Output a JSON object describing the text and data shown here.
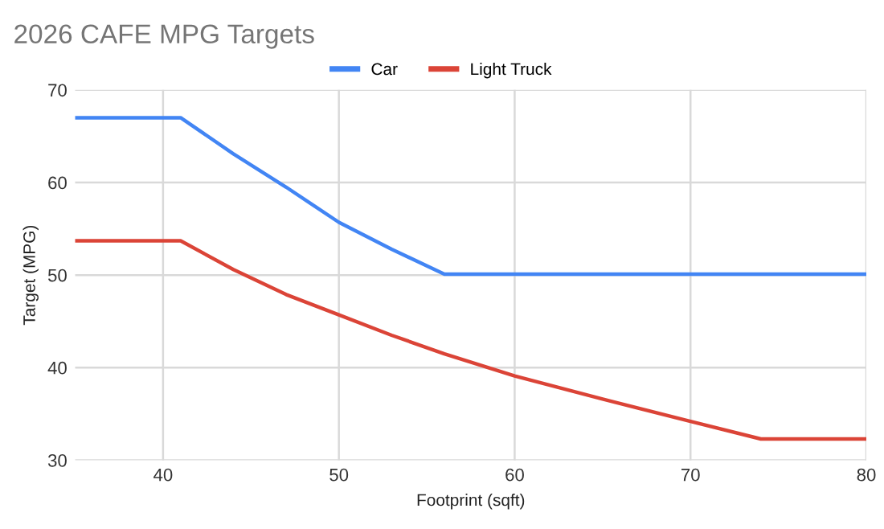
{
  "chart_data": {
    "type": "line",
    "title": "2026 CAFE MPG Targets",
    "xlabel": "Footprint (sqft)",
    "ylabel": "Target (MPG)",
    "xlim": [
      35,
      80
    ],
    "xticks": [
      40,
      50,
      60,
      70,
      80
    ],
    "ylim": [
      30,
      70
    ],
    "yticks": [
      30,
      40,
      50,
      60,
      70
    ],
    "grid": true,
    "legend": "top",
    "marker": "none",
    "line_style": "solid",
    "series": [
      {
        "name": "Car",
        "color": "#4285f4",
        "x": [
          35,
          41,
          44,
          47,
          50,
          53,
          56,
          80
        ],
        "values": [
          67.0,
          67.0,
          63.1,
          59.5,
          55.7,
          52.8,
          50.1,
          50.1
        ]
      },
      {
        "name": "Light Truck",
        "color": "#db4437",
        "x": [
          35,
          41,
          44,
          47,
          50,
          53,
          56,
          60,
          65,
          70,
          74,
          80
        ],
        "values": [
          53.7,
          53.7,
          50.6,
          47.9,
          45.7,
          43.5,
          41.5,
          39.1,
          36.6,
          34.2,
          32.3,
          32.3
        ]
      }
    ]
  }
}
